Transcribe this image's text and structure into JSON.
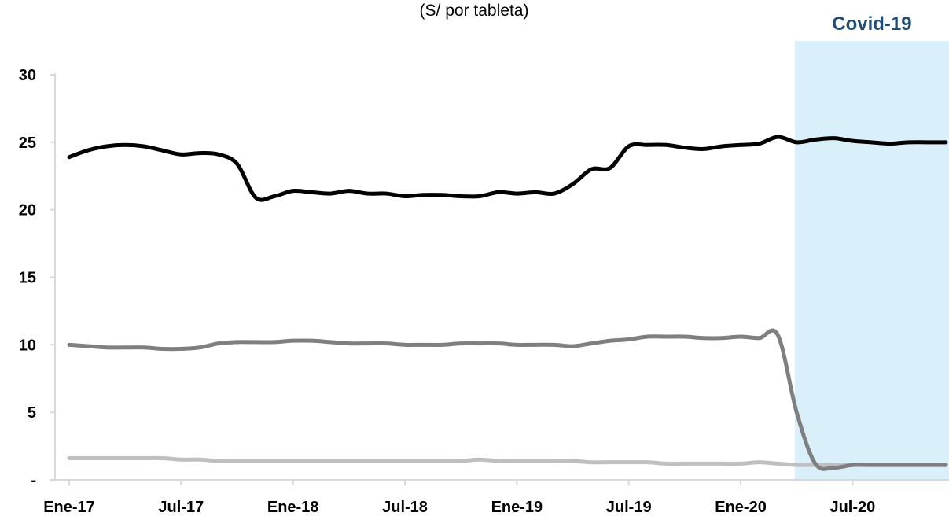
{
  "chart_data": {
    "type": "line",
    "subtitle": "(S/ por tableta)",
    "highlight": {
      "label": "Covid-19",
      "from_x": "Abr-20",
      "label_color": "#1f4e79",
      "fill_color": "#d9f0fb"
    },
    "xlabel": "",
    "ylabel": "",
    "ylim": [
      0,
      30
    ],
    "y_ticks": [
      {
        "value": 0,
        "label": "-"
      },
      {
        "value": 5,
        "label": "5"
      },
      {
        "value": 10,
        "label": "10"
      },
      {
        "value": 15,
        "label": "15"
      },
      {
        "value": 20,
        "label": "20"
      },
      {
        "value": 25,
        "label": "25"
      },
      {
        "value": 30,
        "label": "30"
      }
    ],
    "x_ticks": [
      "Ene-17",
      "Jul-17",
      "Ene-18",
      "Jul-18",
      "Ene-19",
      "Jul-19",
      "Ene-20",
      "Jul-20"
    ],
    "grid": false,
    "legend": "none",
    "categories": [
      "Ene-17",
      "Feb-17",
      "Mar-17",
      "Abr-17",
      "May-17",
      "Jun-17",
      "Jul-17",
      "Ago-17",
      "Sep-17",
      "Oct-17",
      "Nov-17",
      "Dic-17",
      "Ene-18",
      "Feb-18",
      "Mar-18",
      "Abr-18",
      "May-18",
      "Jun-18",
      "Jul-18",
      "Ago-18",
      "Sep-18",
      "Oct-18",
      "Nov-18",
      "Dic-18",
      "Ene-19",
      "Feb-19",
      "Mar-19",
      "Abr-19",
      "May-19",
      "Jun-19",
      "Jul-19",
      "Ago-19",
      "Sep-19",
      "Oct-19",
      "Nov-19",
      "Dic-19",
      "Ene-20",
      "Feb-20",
      "Mar-20",
      "Abr-20",
      "May-20",
      "Jun-20",
      "Jul-20",
      "Ago-20",
      "Sep-20",
      "Oct-20",
      "Nov-20",
      "Dic-20"
    ],
    "series": [
      {
        "color": "#000000",
        "values": [
          23.9,
          24.4,
          24.7,
          24.8,
          24.7,
          24.4,
          24.1,
          24.2,
          24.1,
          23.4,
          20.9,
          21.0,
          21.4,
          21.3,
          21.2,
          21.4,
          21.2,
          21.2,
          21.0,
          21.1,
          21.1,
          21.0,
          21.0,
          21.3,
          21.2,
          21.3,
          21.2,
          21.9,
          23.0,
          23.1,
          24.7,
          24.8,
          24.8,
          24.6,
          24.5,
          24.7,
          24.8,
          24.9,
          25.4,
          25.0,
          25.2,
          25.3,
          25.1,
          25.0,
          24.9,
          25.0,
          25.0,
          25.0
        ]
      },
      {
        "color": "#7f7f7f",
        "values": [
          10.0,
          9.9,
          9.8,
          9.8,
          9.8,
          9.7,
          9.7,
          9.8,
          10.1,
          10.2,
          10.2,
          10.2,
          10.3,
          10.3,
          10.2,
          10.1,
          10.1,
          10.1,
          10.0,
          10.0,
          10.0,
          10.1,
          10.1,
          10.1,
          10.0,
          10.0,
          10.0,
          9.9,
          10.1,
          10.3,
          10.4,
          10.6,
          10.6,
          10.6,
          10.5,
          10.5,
          10.6,
          10.5,
          10.7,
          5.0,
          1.2,
          0.9,
          1.1,
          1.1,
          1.1,
          1.1,
          1.1,
          1.1
        ]
      },
      {
        "color": "#bfbfbf",
        "values": [
          1.6,
          1.6,
          1.6,
          1.6,
          1.6,
          1.6,
          1.5,
          1.5,
          1.4,
          1.4,
          1.4,
          1.4,
          1.4,
          1.4,
          1.4,
          1.4,
          1.4,
          1.4,
          1.4,
          1.4,
          1.4,
          1.4,
          1.5,
          1.4,
          1.4,
          1.4,
          1.4,
          1.4,
          1.3,
          1.3,
          1.3,
          1.3,
          1.2,
          1.2,
          1.2,
          1.2,
          1.2,
          1.3,
          1.2,
          1.1,
          1.1,
          1.1,
          1.1,
          1.1,
          1.1,
          1.1,
          1.1,
          1.1
        ]
      }
    ]
  }
}
